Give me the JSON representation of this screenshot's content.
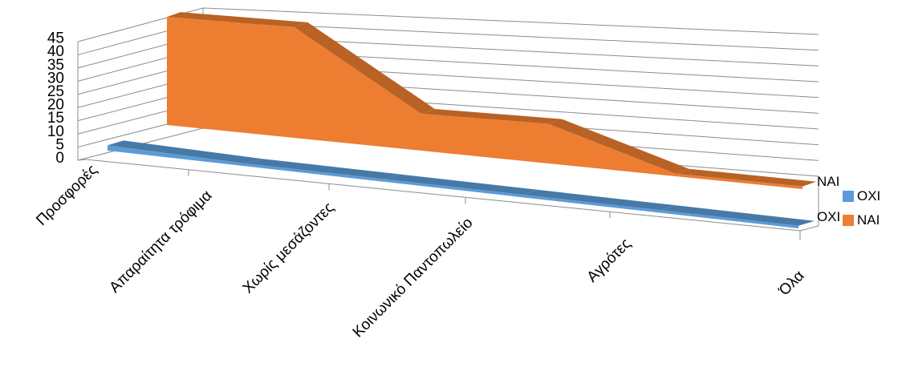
{
  "chart_data": {
    "type": "area",
    "style": "3d",
    "categories": [
      "Προσφορές",
      "Απαραίτητα τρόφιμα",
      "Χωρίς μεσάζοντες",
      "Κοινωνικό Παντοπωλείο",
      "Αγρότες",
      "Όλα"
    ],
    "series": [
      {
        "name": "ΝΑΙ",
        "values": [
          41,
          42,
          14,
          15,
          1,
          1
        ],
        "color": "#ED7D31"
      },
      {
        "name": "ΟΧΙ",
        "values": [
          2,
          1,
          1,
          1,
          1,
          1
        ],
        "color": "#5B9BD5"
      }
    ],
    "depth_axis_labels": [
      "ΝΑΙ",
      "ΟΧΙ"
    ],
    "y_ticks": [
      "0",
      "5",
      "10",
      "15",
      "20",
      "25",
      "30",
      "35",
      "40",
      "45"
    ],
    "ylim": [
      0,
      45
    ],
    "grid": true,
    "legend_position": "right",
    "legend": [
      {
        "label": "ΟΧΙ",
        "color": "#5B9BD5"
      },
      {
        "label": "ΝΑΙ",
        "color": "#ED7D31"
      }
    ]
  }
}
